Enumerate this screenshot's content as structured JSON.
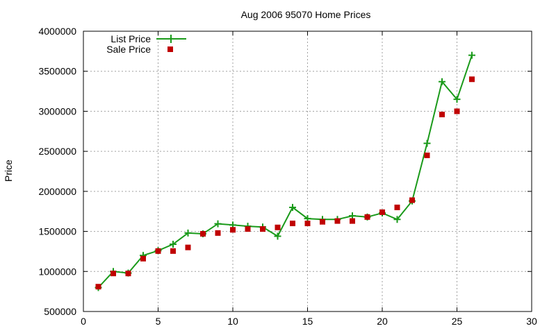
{
  "chart_data": {
    "type": "line",
    "title": "Aug 2006 95070 Home Prices",
    "xlabel": "",
    "ylabel": "Price",
    "xlim": [
      0,
      30
    ],
    "ylim": [
      500000,
      4000000
    ],
    "xticks": [
      0,
      5,
      10,
      15,
      20,
      25,
      30
    ],
    "yticks": [
      500000,
      1000000,
      1500000,
      2000000,
      2500000,
      3000000,
      3500000,
      4000000
    ],
    "xtick_labels": [
      "0",
      "5",
      "10",
      "15",
      "20",
      "25",
      "30"
    ],
    "ytick_labels": [
      "500000",
      "1000000",
      "1500000",
      "2000000",
      "2500000",
      "3000000",
      "3500000",
      "4000000"
    ],
    "grid": true,
    "legend_position": "top-left",
    "series": [
      {
        "name": "List Price",
        "style": "linespoints",
        "color": "#1a9a1a",
        "x": [
          1,
          2,
          3,
          4,
          5,
          6,
          7,
          8,
          9,
          10,
          11,
          12,
          13,
          14,
          15,
          16,
          17,
          18,
          19,
          20,
          21,
          22,
          23,
          24,
          25,
          26
        ],
        "y": [
          799000,
          1000000,
          980000,
          1200000,
          1260000,
          1340000,
          1480000,
          1470000,
          1595000,
          1580000,
          1565000,
          1555000,
          1440000,
          1800000,
          1660000,
          1650000,
          1650000,
          1695000,
          1680000,
          1730000,
          1650000,
          1880000,
          2600000,
          3370000,
          3150000,
          3700000
        ]
      },
      {
        "name": "Sale Price",
        "style": "points",
        "color": "#c00000",
        "x": [
          1,
          2,
          3,
          4,
          5,
          6,
          7,
          8,
          9,
          10,
          11,
          12,
          13,
          14,
          15,
          16,
          17,
          18,
          19,
          20,
          21,
          22,
          23,
          24,
          25,
          26
        ],
        "y": [
          810000,
          975000,
          975000,
          1160000,
          1255000,
          1255000,
          1300000,
          1470000,
          1480000,
          1520000,
          1530000,
          1530000,
          1550000,
          1600000,
          1600000,
          1620000,
          1630000,
          1630000,
          1680000,
          1740000,
          1800000,
          1890000,
          2450000,
          2960000,
          3000000,
          3400000
        ]
      }
    ]
  }
}
